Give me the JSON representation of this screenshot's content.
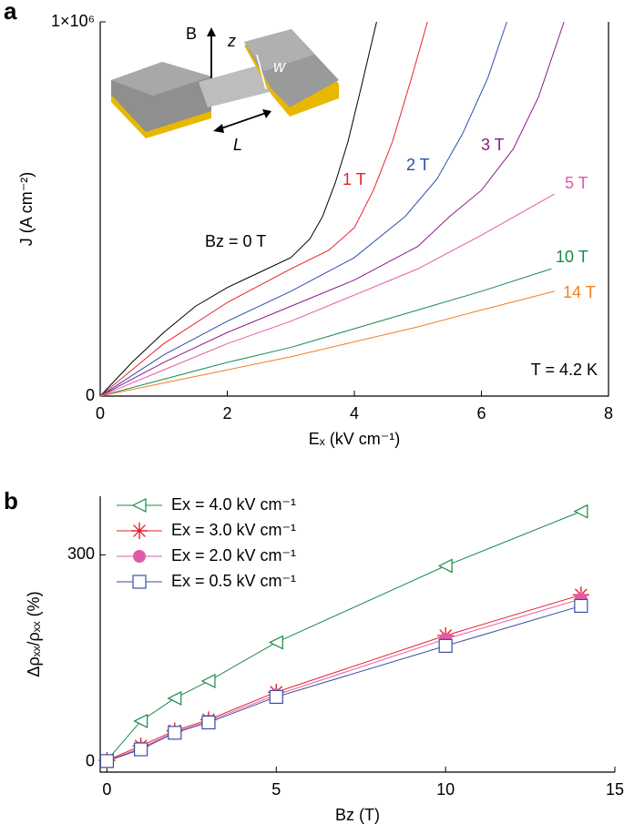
{
  "chart_data": [
    {
      "type": "line",
      "panel": "a",
      "xlabel": "Eₓ (kV cm⁻¹)",
      "ylabel": "J (A cm⁻²)",
      "xlim": [
        0,
        8
      ],
      "xticks": [
        0,
        2,
        4,
        6,
        8
      ],
      "ylim": [
        0,
        1000000
      ],
      "yticks": [
        0,
        {
          "value": 1000000,
          "label": "1×10⁶"
        }
      ],
      "annotation": "T = 4.2 K",
      "inset_labels": [
        "B",
        "z",
        "w",
        "L"
      ],
      "series": [
        {
          "name": "Bz = 0 T",
          "color": "#000000",
          "x": [
            0,
            0.5,
            1,
            1.5,
            2,
            2.5,
            3,
            3.3,
            3.5,
            3.7,
            3.9,
            4.1,
            4.35
          ],
          "values": [
            0,
            90000,
            170000,
            240000,
            290000,
            330000,
            370000,
            420000,
            480000,
            570000,
            680000,
            820000,
            1000000
          ]
        },
        {
          "name": "1 T",
          "color": "#e8202a",
          "x": [
            0,
            1,
            2,
            3,
            3.6,
            4,
            4.3,
            4.6,
            4.9,
            5.15
          ],
          "values": [
            0,
            140000,
            250000,
            340000,
            390000,
            450000,
            550000,
            680000,
            850000,
            1000000
          ]
        },
        {
          "name": "2 T",
          "color": "#2b4fa8",
          "x": [
            0,
            1,
            2,
            3,
            4,
            4.8,
            5.3,
            5.7,
            6.1,
            6.4
          ],
          "values": [
            0,
            110000,
            200000,
            280000,
            370000,
            480000,
            580000,
            700000,
            850000,
            1000000
          ]
        },
        {
          "name": "3 T",
          "color": "#8e1a8a",
          "x": [
            0,
            1,
            2,
            3,
            4,
            5,
            5.5,
            6,
            6.5,
            6.9,
            7.3
          ],
          "values": [
            0,
            90000,
            170000,
            240000,
            310000,
            400000,
            480000,
            550000,
            660000,
            800000,
            1000000
          ]
        },
        {
          "name": "5 T",
          "color": "#e05aa8",
          "x": [
            0,
            1,
            2,
            3,
            4,
            5,
            6,
            7.15
          ],
          "values": [
            0,
            70000,
            140000,
            200000,
            270000,
            340000,
            430000,
            540000
          ]
        },
        {
          "name": "10 T",
          "color": "#1a8a4a",
          "x": [
            0,
            1,
            2,
            3,
            4,
            5,
            6,
            7.1
          ],
          "values": [
            0,
            45000,
            90000,
            130000,
            180000,
            230000,
            280000,
            340000
          ]
        },
        {
          "name": "14 T",
          "color": "#f08020",
          "x": [
            0,
            1,
            2,
            3,
            4,
            5,
            6,
            7.15
          ],
          "values": [
            0,
            35000,
            70000,
            105000,
            145000,
            185000,
            230000,
            280000
          ]
        }
      ]
    },
    {
      "type": "line",
      "panel": "b",
      "xlabel": "Bz (T)",
      "ylabel": "Δρₓₓ/ρₓₓ (%)",
      "xlim": [
        -0.2,
        15
      ],
      "xticks": [
        0,
        5,
        10,
        15
      ],
      "ylim": [
        -15,
        385
      ],
      "yticks": [
        0,
        300
      ],
      "legend": "top-left",
      "series": [
        {
          "name": "Ex = 4.0 kV cm⁻¹",
          "color": "#1a8a4a",
          "marker": "triangle-left",
          "x": [
            0,
            1,
            2,
            3,
            5,
            10,
            14
          ],
          "values": [
            2,
            59,
            92,
            117,
            173,
            284,
            363
          ]
        },
        {
          "name": "Ex = 3.0 kV cm⁻¹",
          "color": "#e8202a",
          "marker": "asterisk",
          "x": [
            0,
            1,
            2,
            3,
            5,
            10,
            14
          ],
          "values": [
            2,
            23,
            45,
            61,
            101,
            183,
            242
          ]
        },
        {
          "name": "Ex = 2.0 kV cm⁻¹",
          "color": "#e05aa8",
          "marker": "circle",
          "x": [
            0,
            1,
            2,
            3,
            5,
            10,
            14
          ],
          "values": [
            1,
            20,
            43,
            59,
            97,
            178,
            236
          ]
        },
        {
          "name": "Ex = 0.5 kV cm⁻¹",
          "color": "#3a4fa0",
          "marker": "square",
          "x": [
            0,
            1,
            2,
            3,
            5,
            10,
            14
          ],
          "values": [
            1,
            18,
            42,
            57,
            94,
            168,
            226
          ]
        }
      ]
    }
  ]
}
